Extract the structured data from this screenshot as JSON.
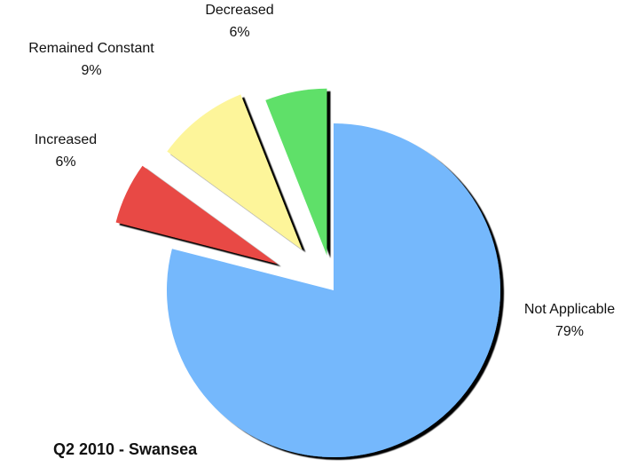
{
  "chart_data": {
    "type": "pie",
    "title": "Q2 2010 - Swansea",
    "slices": [
      {
        "label": "Not Applicable",
        "value": 79,
        "value_label": "79%",
        "color": "#74b8fc",
        "exploded": false
      },
      {
        "label": "Increased",
        "value": 6,
        "value_label": "6%",
        "color": "#e84a44",
        "exploded": true
      },
      {
        "label": "Remained Constant",
        "value": 9,
        "value_label": "9%",
        "color": "#fdf59a",
        "exploded": true
      },
      {
        "label": "Decreased",
        "value": 6,
        "value_label": "6%",
        "color": "#5ee069",
        "exploded": true
      }
    ],
    "legend": "none"
  }
}
